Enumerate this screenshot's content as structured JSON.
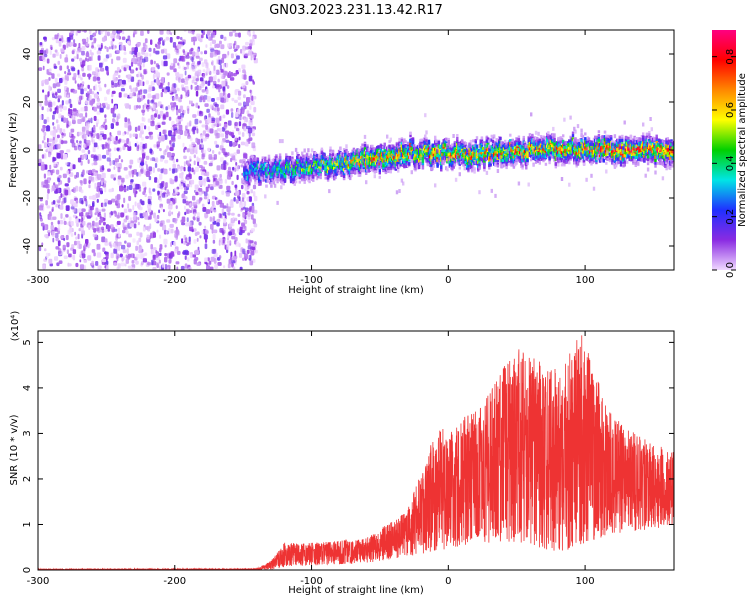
{
  "figure": {
    "title": "GN03.2023.231.13.42.R17"
  },
  "chart_data": [
    {
      "type": "heatmap",
      "title": "GN03.2023.231.13.42.R17",
      "xlabel": "Height of straight line (km)",
      "ylabel": "Frequency (Hz)",
      "xlim": [
        -300,
        165
      ],
      "ylim": [
        -50,
        50
      ],
      "x_ticks": [
        -300,
        -200,
        -100,
        0,
        100
      ],
      "y_ticks": [
        -40,
        -20,
        0,
        20,
        40
      ],
      "colorbar": {
        "label": "Normalized spectral amplitude",
        "range": [
          0.0,
          0.9
        ],
        "ticks": [
          0.0,
          0.2,
          0.4,
          0.6,
          0.8
        ],
        "colormap": [
          "#f0d8ff",
          "#8a2be2",
          "#2030ff",
          "#00e5e5",
          "#00d000",
          "#ffff00",
          "#ff8800",
          "#ff0000",
          "#ff0080"
        ]
      },
      "features": {
        "noise_region_x": [
          -300,
          -150
        ],
        "signal_centerline": [
          {
            "x": -145,
            "y": -9
          },
          {
            "x": -120,
            "y": -8
          },
          {
            "x": -100,
            "y": -7
          },
          {
            "x": -60,
            "y": -4
          },
          {
            "x": -20,
            "y": -1
          },
          {
            "x": 0,
            "y": -2
          },
          {
            "x": 40,
            "y": -1
          },
          {
            "x": 80,
            "y": 0
          },
          {
            "x": 120,
            "y": 0
          },
          {
            "x": 165,
            "y": 0
          }
        ],
        "signal_peak_amplitude": 0.85
      },
      "grid": false
    },
    {
      "type": "line",
      "xlabel": "Height of straight line (km)",
      "ylabel": "SNR (10 * v/v)",
      "y_multiplier": "(x10⁴)",
      "xlim": [
        -300,
        165
      ],
      "ylim": [
        0,
        5.25
      ],
      "x_ticks": [
        -300,
        -200,
        -100,
        0,
        100
      ],
      "y_ticks": [
        0,
        1,
        2,
        3,
        4,
        5
      ],
      "series": [
        {
          "color": "#ee3333",
          "envelope": [
            {
              "x": -300,
              "lo": 0.0,
              "hi": 0.02
            },
            {
              "x": -140,
              "lo": 0.0,
              "hi": 0.03
            },
            {
              "x": -130,
              "lo": 0.0,
              "hi": 0.2
            },
            {
              "x": -120,
              "lo": 0.05,
              "hi": 0.6
            },
            {
              "x": -100,
              "lo": 0.1,
              "hi": 0.6
            },
            {
              "x": -60,
              "lo": 0.15,
              "hi": 0.7
            },
            {
              "x": -30,
              "lo": 0.3,
              "hi": 1.3
            },
            {
              "x": -10,
              "lo": 0.4,
              "hi": 3.0
            },
            {
              "x": 20,
              "lo": 0.6,
              "hi": 3.5
            },
            {
              "x": 50,
              "lo": 0.6,
              "hi": 4.9
            },
            {
              "x": 80,
              "lo": 0.4,
              "hi": 4.4
            },
            {
              "x": 97,
              "lo": 0.5,
              "hi": 5.2
            },
            {
              "x": 120,
              "lo": 0.8,
              "hi": 3.4
            },
            {
              "x": 150,
              "lo": 0.9,
              "hi": 2.8
            },
            {
              "x": 165,
              "lo": 1.0,
              "hi": 2.6
            }
          ]
        }
      ],
      "grid": false
    }
  ]
}
